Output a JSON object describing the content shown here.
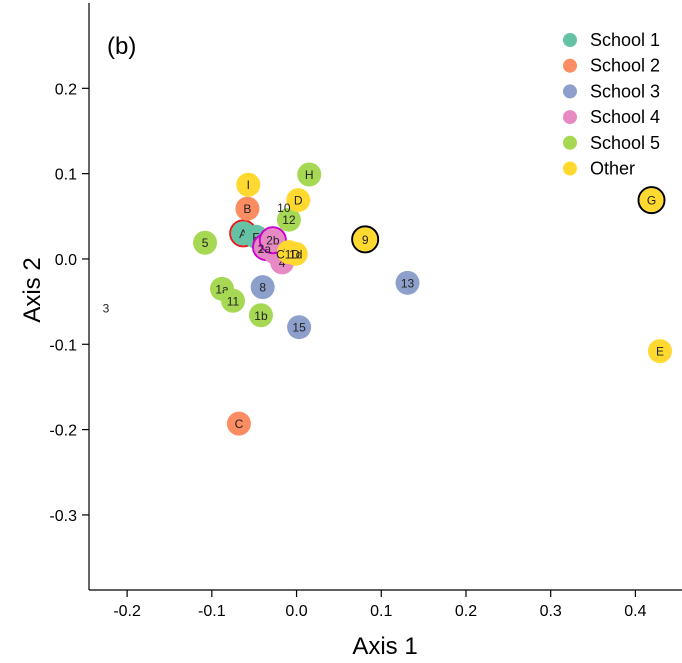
{
  "chart_data": {
    "type": "scatter",
    "title": "",
    "panel_label": "(b)",
    "xlabel": "Axis 1",
    "ylabel": "Axis 2",
    "xlim": [
      -0.245,
      0.455
    ],
    "ylim": [
      -0.388,
      0.3
    ],
    "xticks": [
      -0.2,
      -0.1,
      0.0,
      0.1,
      0.2,
      0.3,
      0.4
    ],
    "xtick_labels": [
      "-0.2",
      "-0.1",
      "0.0",
      "0.1",
      "0.2",
      "0.3",
      "0.4"
    ],
    "yticks": [
      -0.3,
      -0.2,
      -0.1,
      0.0,
      0.1,
      0.2
    ],
    "ytick_labels": [
      "-0.3",
      "-0.2",
      "-0.1",
      "0.0",
      "0.1",
      "0.2"
    ],
    "grid": false,
    "legend_position": "top-right",
    "colors": {
      "School 1": "#66c2a5",
      "School 2": "#fc8d62",
      "School 3": "#8da0cb",
      "School 4": "#e78ac3",
      "School 5": "#a6d854",
      "Other": "#ffd92f"
    },
    "series": [
      {
        "name": "School 1",
        "points": [
          {
            "label": "A",
            "x": -0.063,
            "y": 0.03,
            "ring": "#e41a1c"
          },
          {
            "label": "F",
            "x": -0.048,
            "y": 0.026
          },
          {
            "label": "6",
            "x": -0.033,
            "y": 0.02
          }
        ]
      },
      {
        "name": "School 2",
        "points": [
          {
            "label": "B",
            "x": -0.058,
            "y": 0.059
          },
          {
            "label": "C",
            "x": -0.068,
            "y": -0.193
          }
        ]
      },
      {
        "name": "School 3",
        "points": [
          {
            "label": "8",
            "x": -0.04,
            "y": -0.033
          },
          {
            "label": "13",
            "x": 0.131,
            "y": -0.028
          },
          {
            "label": "15",
            "x": 0.003,
            "y": -0.08
          }
        ]
      },
      {
        "name": "School 4",
        "points": [
          {
            "label": "2a",
            "x": -0.036,
            "y": 0.014,
            "ring": "#cc00cc"
          },
          {
            "label": "7",
            "x": -0.026,
            "y": 0.008
          },
          {
            "label": "4",
            "x": -0.017,
            "y": -0.004
          },
          {
            "label": "2b",
            "x": -0.028,
            "y": 0.022,
            "ring": "#cc00cc"
          }
        ]
      },
      {
        "name": "School 5",
        "points": [
          {
            "label": "5",
            "x": -0.108,
            "y": 0.019
          },
          {
            "label": "12",
            "x": -0.009,
            "y": 0.046
          },
          {
            "label": "H",
            "x": 0.015,
            "y": 0.099
          },
          {
            "label": "1a",
            "x": -0.088,
            "y": -0.035
          },
          {
            "label": "11",
            "x": -0.075,
            "y": -0.049
          },
          {
            "label": "1b",
            "x": -0.042,
            "y": -0.066
          }
        ]
      },
      {
        "name": "Other",
        "points": [
          {
            "label": "I",
            "x": -0.057,
            "y": 0.087
          },
          {
            "label": "D",
            "x": 0.002,
            "y": 0.069
          },
          {
            "label": "1c",
            "x": -0.009,
            "y": 0.008
          },
          {
            "label": "1d",
            "x": -0.001,
            "y": 0.006
          },
          {
            "label": "9",
            "x": 0.081,
            "y": 0.023,
            "ring": "#000000"
          },
          {
            "label": "G",
            "x": 0.419,
            "y": 0.069,
            "ring": "#000000"
          },
          {
            "label": "E",
            "x": 0.429,
            "y": -0.108
          }
        ]
      }
    ],
    "unplotted_labels": [
      {
        "label": "10",
        "x": -0.015,
        "y": 0.06
      },
      {
        "label": "3",
        "x": -0.225,
        "y": -0.058
      }
    ],
    "overlap_labels": [
      {
        "label": "2a",
        "x": -0.038,
        "y": 0.012
      },
      {
        "label": "C1D",
        "x": -0.01,
        "y": 0.006
      }
    ]
  }
}
